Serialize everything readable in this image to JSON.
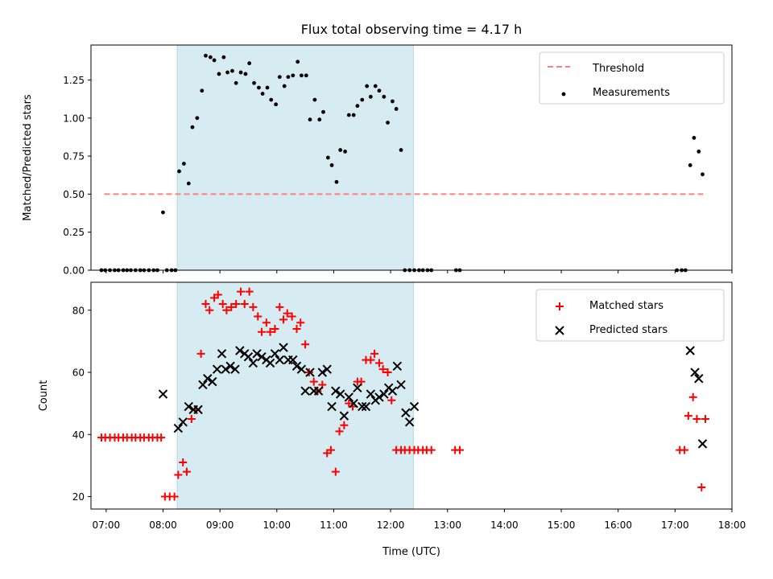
{
  "chart_data": {
    "type": "scatter",
    "title": "Flux total observing time = 4.17 h",
    "xlabel": "Time (UTC)",
    "xlim": [
      "06:44",
      "18:00"
    ],
    "x_ticks": [
      "07:00",
      "08:00",
      "09:00",
      "10:00",
      "11:00",
      "12:00",
      "13:00",
      "14:00",
      "15:00",
      "16:00",
      "17:00",
      "18:00"
    ],
    "shaded_interval": {
      "start": "08:15",
      "end": "12:24",
      "color": "#add8e6"
    },
    "colors": {
      "threshold": "#ff7f7f",
      "measurements": "#000000",
      "matched": "#ff0000",
      "predicted": "#000000"
    },
    "panels": [
      {
        "ylabel": "Matched/Predicted stars",
        "ylim": [
          0,
          1.48
        ],
        "y_ticks": [
          "0.00",
          "0.25",
          "0.50",
          "0.75",
          "1.00",
          "1.25"
        ],
        "legend": [
          "Threshold",
          "Measurements"
        ],
        "legend_position": "upper right",
        "series": [
          {
            "name": "Threshold",
            "type": "line",
            "style": "dashed",
            "x": [
              "06:58",
              "17:33"
            ],
            "y": [
              0.5,
              0.5
            ]
          },
          {
            "name": "Measurements",
            "type": "scatter",
            "marker": "dot",
            "x": [
              "06:55",
              "06:59",
              "07:04",
              "07:09",
              "07:13",
              "07:18",
              "07:22",
              "07:26",
              "07:31",
              "07:36",
              "07:40",
              "07:45",
              "07:50",
              "07:54",
              "08:00",
              "08:04",
              "08:09",
              "08:13",
              "08:17",
              "08:22",
              "08:27",
              "08:31",
              "08:36",
              "08:41",
              "08:45",
              "08:50",
              "08:54",
              "08:59",
              "09:04",
              "09:08",
              "09:13",
              "09:17",
              "09:22",
              "09:27",
              "09:31",
              "09:36",
              "09:41",
              "09:45",
              "09:50",
              "09:54",
              "09:59",
              "10:03",
              "10:08",
              "10:12",
              "10:17",
              "10:22",
              "10:26",
              "10:31",
              "10:35",
              "10:40",
              "10:45",
              "10:49",
              "10:54",
              "10:58",
              "11:03",
              "11:07",
              "11:12",
              "11:16",
              "11:21",
              "11:25",
              "11:30",
              "11:35",
              "11:39",
              "11:44",
              "11:48",
              "11:53",
              "11:57",
              "12:02",
              "12:06",
              "12:11",
              "12:15",
              "12:20",
              "12:25",
              "12:30",
              "12:34",
              "12:39",
              "12:43",
              "13:09",
              "13:13",
              "17:02",
              "17:07",
              "17:11",
              "17:16",
              "17:20",
              "17:25",
              "17:29"
            ],
            "y": [
              0,
              0,
              0,
              0,
              0,
              0,
              0,
              0,
              0,
              0,
              0,
              0,
              0,
              0,
              0.38,
              0,
              0,
              0,
              0.65,
              0.7,
              0.57,
              0.94,
              1.0,
              1.18,
              1.41,
              1.4,
              1.38,
              1.29,
              1.4,
              1.3,
              1.31,
              1.23,
              1.3,
              1.29,
              1.36,
              1.23,
              1.2,
              1.16,
              1.2,
              1.12,
              1.09,
              1.27,
              1.21,
              1.27,
              1.28,
              1.37,
              1.28,
              1.28,
              0.99,
              1.12,
              0.99,
              1.04,
              0.74,
              0.69,
              0.58,
              0.79,
              0.78,
              1.02,
              1.02,
              1.08,
              1.12,
              1.21,
              1.14,
              1.21,
              1.18,
              1.14,
              0.97,
              1.11,
              1.06,
              0.79,
              0,
              0,
              0,
              0,
              0,
              0,
              0,
              0,
              0,
              0,
              0,
              0,
              0.69,
              0.87,
              0.78,
              0.63
            ]
          }
        ]
      },
      {
        "ylabel": "Count",
        "ylim": [
          16,
          89
        ],
        "y_ticks": [
          "20",
          "40",
          "60",
          "80"
        ],
        "legend": [
          "Matched stars",
          "Predicted stars"
        ],
        "legend_position": "upper right",
        "series": [
          {
            "name": "Matched stars",
            "type": "scatter",
            "marker": "plus",
            "x": [
              "06:55",
              "06:59",
              "07:04",
              "07:09",
              "07:13",
              "07:18",
              "07:22",
              "07:27",
              "07:31",
              "07:36",
              "07:40",
              "07:45",
              "07:49",
              "07:54",
              "07:58",
              "08:02",
              "08:07",
              "08:12",
              "08:16",
              "08:21",
              "08:25",
              "08:30",
              "08:35",
              "08:40",
              "08:45",
              "08:49",
              "08:54",
              "08:58",
              "09:03",
              "09:07",
              "09:12",
              "09:17",
              "09:22",
              "09:26",
              "09:31",
              "09:35",
              "09:40",
              "09:44",
              "09:49",
              "09:53",
              "09:58",
              "10:03",
              "10:07",
              "10:11",
              "10:16",
              "10:21",
              "10:25",
              "10:30",
              "10:34",
              "10:39",
              "10:43",
              "10:48",
              "10:53",
              "10:57",
              "11:02",
              "11:06",
              "11:11",
              "11:16",
              "11:20",
              "11:25",
              "11:29",
              "11:34",
              "11:39",
              "11:43",
              "11:48",
              "11:52",
              "11:57",
              "12:01",
              "12:06",
              "12:11",
              "12:15",
              "12:20",
              "12:25",
              "12:29",
              "12:34",
              "12:38",
              "12:43",
              "13:08",
              "13:13",
              "17:05",
              "17:10",
              "17:14",
              "17:19",
              "17:23",
              "17:28",
              "17:32"
            ],
            "y": [
              39,
              39,
              39,
              39,
              39,
              39,
              39,
              39,
              39,
              39,
              39,
              39,
              39,
              39,
              39,
              20,
              20,
              20,
              27,
              31,
              28,
              45,
              48,
              66,
              82,
              80,
              84,
              85,
              82,
              80,
              81,
              82,
              86,
              82,
              86,
              81,
              78,
              73,
              76,
              73,
              74,
              81,
              77,
              79,
              78,
              74,
              76,
              69,
              60,
              57,
              54,
              56,
              34,
              35,
              28,
              41,
              43,
              50,
              49,
              57,
              57,
              64,
              64,
              66,
              63,
              61,
              60,
              51,
              35,
              35,
              35,
              35,
              35,
              35,
              35,
              35,
              35,
              35,
              35,
              35,
              35,
              46,
              52,
              45,
              23,
              45
            ]
          },
          {
            "name": "Predicted stars",
            "type": "scatter",
            "marker": "x",
            "x": [
              "08:00",
              "08:16",
              "08:21",
              "08:27",
              "08:32",
              "08:37",
              "08:42",
              "08:47",
              "08:52",
              "08:57",
              "09:02",
              "09:06",
              "09:11",
              "09:16",
              "09:21",
              "09:26",
              "09:30",
              "09:35",
              "09:39",
              "09:44",
              "09:49",
              "09:53",
              "09:58",
              "10:03",
              "10:07",
              "10:12",
              "10:17",
              "10:21",
              "10:26",
              "10:30",
              "10:35",
              "10:39",
              "10:44",
              "10:48",
              "10:53",
              "10:58",
              "11:02",
              "11:07",
              "11:11",
              "11:16",
              "11:21",
              "11:25",
              "11:30",
              "11:34",
              "11:39",
              "11:44",
              "11:48",
              "11:53",
              "11:58",
              "12:02",
              "12:07",
              "12:11",
              "12:16",
              "12:20",
              "12:25",
              "17:16",
              "17:21",
              "17:25",
              "17:29"
            ],
            "y": [
              53,
              42,
              44,
              49,
              48,
              48,
              56,
              58,
              57,
              61,
              66,
              61,
              62,
              61,
              67,
              66,
              65,
              63,
              66,
              65,
              64,
              63,
              66,
              64,
              68,
              64,
              64,
              62,
              61,
              54,
              60,
              54,
              54,
              60,
              61,
              49,
              54,
              53,
              46,
              52,
              50,
              55,
              49,
              49,
              53,
              51,
              52,
              53,
              55,
              54,
              62,
              56,
              47,
              44,
              49,
              67,
              60,
              58,
              37
            ]
          }
        ]
      }
    ]
  }
}
